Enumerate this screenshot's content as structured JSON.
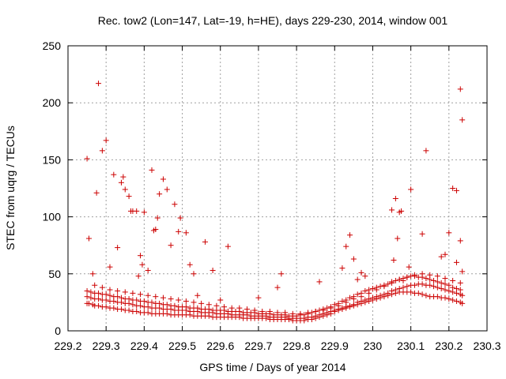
{
  "chart_data": {
    "type": "scatter",
    "title": "Rec. tow2 (Lon=147, Lat=-19, h=HE), days 229-230, 2014, window 001",
    "xlabel": "GPS time / Days of year 2014",
    "ylabel": "STEC from uqrg / TECUs",
    "xlim": [
      229.2,
      230.3
    ],
    "ylim": [
      0,
      250
    ],
    "xticks": [
      229.2,
      229.3,
      229.4,
      229.5,
      229.6,
      229.7,
      229.8,
      229.9,
      230.0,
      230.1,
      230.2,
      230.3
    ],
    "xtick_labels": [
      "229.2",
      "229.3",
      "229.4",
      "229.5",
      "229.6",
      "229.7",
      "229.8",
      "229.9",
      "230",
      "230.1",
      "230.2",
      "230.3"
    ],
    "yticks": [
      0,
      50,
      100,
      150,
      200,
      250
    ],
    "ytick_labels": [
      "0",
      "50",
      "100",
      "150",
      "200",
      "250"
    ],
    "grid": true,
    "marker": "+",
    "color": "#cc0000",
    "series": [
      {
        "x": [
          229.25,
          229.255,
          229.265,
          229.27,
          229.28,
          229.29,
          229.3,
          229.31,
          229.32,
          229.33,
          229.34,
          229.35,
          229.36,
          229.37,
          229.38,
          229.39,
          229.4,
          229.41,
          229.42,
          229.43,
          229.44,
          229.45,
          229.46,
          229.47,
          229.48,
          229.49,
          229.5,
          229.51,
          229.52,
          229.53,
          229.54,
          229.55,
          229.56,
          229.57,
          229.58,
          229.59,
          229.6,
          229.61,
          229.62,
          229.63,
          229.64,
          229.65,
          229.66,
          229.67,
          229.68,
          229.69,
          229.7,
          229.71,
          229.72,
          229.73,
          229.74,
          229.75,
          229.76,
          229.77,
          229.78,
          229.79,
          229.8,
          229.81,
          229.82,
          229.83,
          229.84,
          229.85,
          229.86,
          229.87,
          229.88,
          229.89,
          229.9,
          229.91,
          229.92,
          229.93,
          229.94,
          229.95,
          229.96,
          229.97,
          229.98,
          229.99,
          230.0,
          230.01,
          230.02,
          230.03,
          230.04,
          230.05,
          230.06,
          230.07,
          230.08,
          230.09,
          230.1,
          230.11,
          230.12,
          230.13,
          230.14,
          230.15,
          230.16,
          230.17,
          230.18,
          230.19,
          230.2,
          230.21,
          230.22,
          230.23,
          230.235
        ],
        "y": [
          24,
          24,
          23,
          22,
          22,
          21,
          21,
          20,
          20,
          19,
          19,
          18,
          18,
          17,
          17,
          16,
          16,
          16,
          15,
          15,
          15,
          15,
          15,
          14,
          14,
          14,
          14,
          14,
          14,
          13,
          13,
          13,
          13,
          13,
          12,
          12,
          12,
          12,
          12,
          12,
          12,
          12,
          11,
          11,
          11,
          11,
          11,
          11,
          11,
          10,
          10,
          10,
          10,
          10,
          10,
          9,
          9,
          9,
          9,
          10,
          10,
          11,
          12,
          13,
          14,
          15,
          17,
          18,
          19,
          20,
          21,
          22,
          23,
          24,
          25,
          26,
          27,
          28,
          29,
          30,
          31,
          32,
          33,
          34,
          34,
          34,
          34,
          33,
          33,
          32,
          31,
          30,
          30,
          30,
          29,
          29,
          28,
          27,
          26,
          25,
          24
        ]
      },
      {
        "x": [
          229.25,
          229.26,
          229.27,
          229.28,
          229.29,
          229.3,
          229.31,
          229.32,
          229.33,
          229.34,
          229.35,
          229.36,
          229.37,
          229.38,
          229.39,
          229.4,
          229.41,
          229.42,
          229.43,
          229.44,
          229.45,
          229.46,
          229.47,
          229.48,
          229.49,
          229.5,
          229.51,
          229.52,
          229.53,
          229.54,
          229.55,
          229.56,
          229.57,
          229.58,
          229.59,
          229.6,
          229.61,
          229.62,
          229.63,
          229.64,
          229.65,
          229.66,
          229.67,
          229.68,
          229.69,
          229.7,
          229.71,
          229.72,
          229.73,
          229.74,
          229.75,
          229.76,
          229.77,
          229.78,
          229.79,
          229.8,
          229.81,
          229.82,
          229.83,
          229.84,
          229.85,
          229.86,
          229.87,
          229.88,
          229.89,
          229.9,
          229.91,
          229.92,
          229.93,
          229.94,
          229.95,
          229.96,
          229.97,
          229.98,
          229.99,
          230.0,
          230.01,
          230.02,
          230.03,
          230.04,
          230.05,
          230.06,
          230.07,
          230.08,
          230.09,
          230.1,
          230.11,
          230.12,
          230.13,
          230.14,
          230.15,
          230.16,
          230.17,
          230.18,
          230.19,
          230.2,
          230.21,
          230.22,
          230.23,
          230.235
        ],
        "y": [
          30,
          29,
          28,
          28,
          27,
          27,
          26,
          26,
          25,
          25,
          24,
          24,
          23,
          22,
          22,
          21,
          21,
          20,
          20,
          20,
          19,
          19,
          19,
          18,
          18,
          18,
          18,
          17,
          17,
          17,
          16,
          16,
          16,
          16,
          15,
          15,
          15,
          15,
          14,
          14,
          14,
          14,
          14,
          13,
          13,
          13,
          13,
          13,
          12,
          12,
          12,
          12,
          12,
          11,
          11,
          11,
          11,
          11,
          12,
          12,
          13,
          14,
          15,
          16,
          17,
          18,
          19,
          20,
          21,
          22,
          23,
          25,
          26,
          27,
          28,
          29,
          30,
          31,
          32,
          33,
          35,
          36,
          37,
          38,
          39,
          40,
          40,
          41,
          41,
          40,
          40,
          39,
          38,
          37,
          36,
          35,
          34,
          33,
          32,
          31
        ]
      },
      {
        "x": [
          229.25,
          229.26,
          229.27,
          229.28,
          229.29,
          229.3,
          229.31,
          229.32,
          229.33,
          229.34,
          229.35,
          229.36,
          229.37,
          229.38,
          229.39,
          229.4,
          229.41,
          229.42,
          229.43,
          229.44,
          229.45,
          229.46,
          229.47,
          229.48,
          229.49,
          229.5,
          229.51,
          229.52,
          229.53,
          229.54,
          229.55,
          229.56,
          229.57,
          229.58,
          229.59,
          229.6,
          229.61,
          229.62,
          229.63,
          229.64,
          229.65,
          229.66,
          229.67,
          229.68,
          229.69,
          229.7,
          229.71,
          229.72,
          229.73,
          229.74,
          229.75,
          229.76,
          229.77,
          229.78,
          229.79,
          229.8,
          229.81,
          229.82,
          229.83,
          229.84,
          229.85,
          229.86,
          229.87,
          229.88,
          229.89,
          229.9,
          229.91,
          229.92,
          229.93,
          229.94,
          229.95,
          229.96,
          229.97,
          229.98,
          229.99,
          230.0,
          230.01,
          230.02,
          230.03,
          230.04,
          230.05,
          230.06,
          230.07,
          230.08,
          230.09,
          230.1,
          230.11,
          230.12,
          230.13,
          230.14,
          230.15,
          230.16,
          230.17,
          230.18,
          230.19,
          230.2,
          230.21,
          230.22,
          230.23
        ],
        "y": [
          35,
          34,
          33,
          33,
          32,
          32,
          31,
          30,
          30,
          29,
          28,
          28,
          27,
          27,
          26,
          26,
          25,
          25,
          24,
          24,
          23,
          23,
          22,
          22,
          21,
          21,
          21,
          20,
          20,
          20,
          19,
          19,
          19,
          18,
          18,
          18,
          18,
          17,
          17,
          17,
          17,
          16,
          16,
          16,
          16,
          15,
          15,
          15,
          15,
          14,
          14,
          14,
          14,
          13,
          13,
          13,
          14,
          14,
          15,
          16,
          17,
          18,
          19,
          20,
          21,
          23,
          24,
          26,
          27,
          29,
          30,
          32,
          33,
          35,
          36,
          37,
          38,
          39,
          40,
          41,
          43,
          44,
          45,
          46,
          47,
          48,
          48,
          47,
          47,
          46,
          45,
          44,
          43,
          42,
          41,
          40,
          38,
          37,
          36
        ]
      },
      {
        "x": [
          229.27,
          229.29,
          229.31,
          229.33,
          229.35,
          229.37,
          229.39,
          229.41,
          229.43,
          229.45,
          229.47,
          229.49,
          229.51,
          229.53,
          229.55,
          229.57,
          229.59,
          229.61,
          229.63,
          229.65,
          229.67,
          229.69,
          229.71,
          229.73,
          229.75,
          229.77,
          229.79,
          229.81,
          229.83,
          229.85,
          229.87,
          229.89,
          229.91,
          229.93,
          229.95,
          229.97,
          229.99,
          230.01,
          230.03,
          230.05,
          230.07,
          230.09,
          230.11,
          230.13,
          230.15,
          230.17,
          230.19,
          230.21,
          230.23
        ],
        "y": [
          40,
          38,
          36,
          35,
          34,
          33,
          32,
          31,
          30,
          29,
          28,
          27,
          26,
          25,
          24,
          23,
          22,
          21,
          20,
          20,
          19,
          18,
          17,
          17,
          16,
          16,
          15,
          15,
          16,
          17,
          18,
          20,
          22,
          25,
          28,
          30,
          33,
          36,
          39,
          42,
          45,
          47,
          49,
          50,
          49,
          48,
          46,
          44,
          42
        ]
      },
      {
        "x": [
          229.25,
          229.255,
          229.265,
          229.275,
          229.28,
          229.29,
          229.3,
          229.31,
          229.32,
          229.33,
          229.34,
          229.345,
          229.35,
          229.36,
          229.365,
          229.37,
          229.38,
          229.385,
          229.39,
          229.395,
          229.4,
          229.41,
          229.42,
          229.425,
          229.43,
          229.435,
          229.44,
          229.45,
          229.46,
          229.47,
          229.48,
          229.49,
          229.495,
          229.51,
          229.52,
          229.53,
          229.54,
          229.56,
          229.58,
          229.6,
          229.62,
          229.7,
          229.75,
          229.76,
          229.86,
          229.92,
          229.93,
          229.94,
          229.95,
          229.96,
          229.97,
          229.98,
          230.05,
          230.055,
          230.06,
          230.065,
          230.07,
          230.075,
          230.08,
          230.095,
          230.1,
          230.13,
          230.14,
          230.18,
          230.19,
          230.2,
          230.21,
          230.22,
          230.23,
          230.235
        ],
        "y": [
          151,
          81,
          50,
          121,
          217,
          158,
          167,
          56,
          137,
          73,
          130,
          135,
          124,
          118,
          105,
          105,
          105,
          48,
          66,
          58,
          104,
          53,
          141,
          88,
          89,
          99,
          120,
          133,
          124,
          75,
          111,
          87,
          99,
          86,
          58,
          50,
          31,
          78,
          53,
          27,
          74,
          29,
          38,
          50,
          43,
          55,
          74,
          84,
          63,
          45,
          51,
          48,
          106,
          62,
          116,
          81,
          104,
          105,
          44,
          56,
          124,
          85,
          158,
          65,
          67,
          86,
          125,
          60,
          79,
          185
        ],
        "extra": "isolated high values"
      },
      {
        "x": [
          230.22,
          230.23,
          230.235
        ],
        "y": [
          123,
          212,
          52
        ]
      }
    ]
  }
}
